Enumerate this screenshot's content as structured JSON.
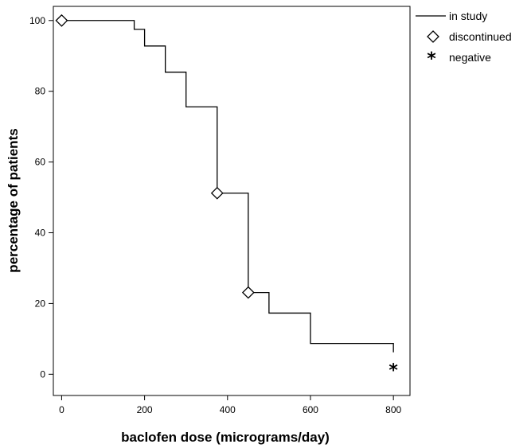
{
  "chart_data": {
    "type": "line",
    "subtype": "step",
    "xlabel": "baclofen dose (micrograms/day)",
    "ylabel": "percentage of patients",
    "xlim": [
      -20,
      840
    ],
    "ylim": [
      -6,
      104
    ],
    "x_ticks": [
      0,
      200,
      400,
      600,
      800
    ],
    "y_ticks": [
      0,
      20,
      40,
      60,
      80,
      100
    ],
    "x_tick_labels": [
      "0",
      "200",
      "400",
      "600",
      "800"
    ],
    "y_tick_labels": [
      "0",
      "20",
      "40",
      "60",
      "80",
      "100"
    ],
    "grid": false,
    "legend_position": "top-right",
    "series": [
      {
        "name": "in study",
        "marker": "line",
        "color": "#000000",
        "steps": [
          {
            "x": 0,
            "y": 100
          },
          {
            "x": 175,
            "y": 97.5
          },
          {
            "x": 200,
            "y": 92.8
          },
          {
            "x": 250,
            "y": 85.4
          },
          {
            "x": 300,
            "y": 75.6
          },
          {
            "x": 375,
            "y": 51.2
          },
          {
            "x": 450,
            "y": 23.1
          },
          {
            "x": 500,
            "y": 17.3
          },
          {
            "x": 600,
            "y": 8.7
          },
          {
            "x": 800,
            "y": 6.2
          }
        ]
      },
      {
        "name": "discontinued",
        "marker": "diamond",
        "color": "#000000",
        "points": [
          {
            "x": 0,
            "y": 100
          },
          {
            "x": 375,
            "y": 51.2
          },
          {
            "x": 450,
            "y": 23.1
          }
        ]
      },
      {
        "name": "negative",
        "marker": "asterisk",
        "glyph": "*",
        "color": "#000000",
        "points": [
          {
            "x": 800,
            "y": 1.5
          }
        ]
      }
    ]
  }
}
